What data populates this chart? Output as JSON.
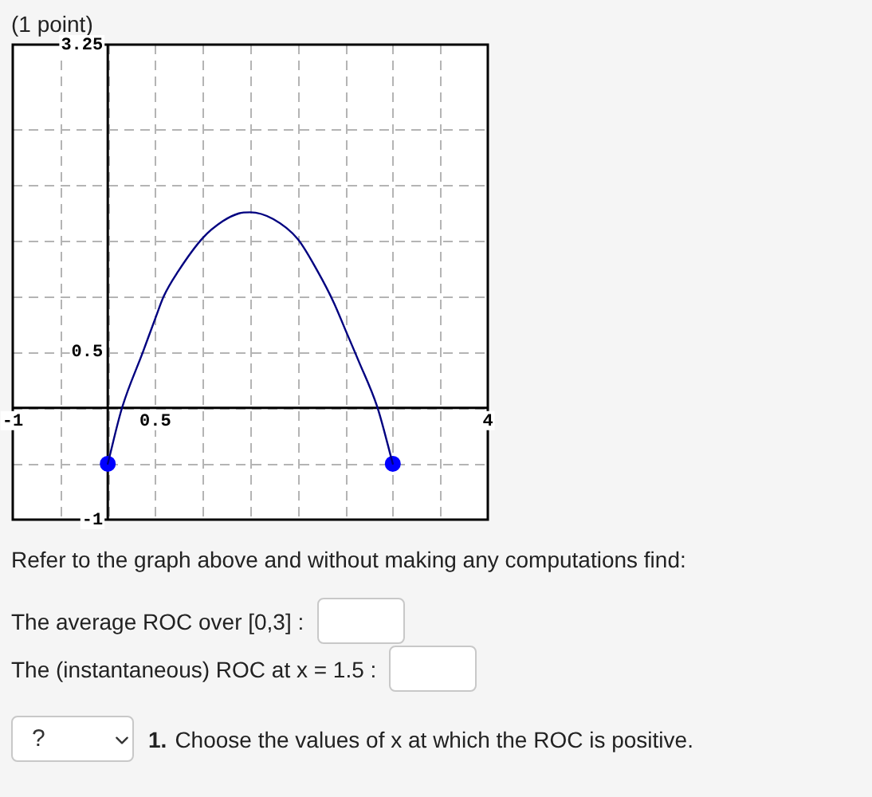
{
  "chart_data": {
    "type": "line",
    "title": "(1 point)",
    "xlim": [
      -1,
      4
    ],
    "ylim": [
      -1,
      3.25
    ],
    "xticks": [
      -1,
      {
        "value": -0.5,
        "label": null
      },
      {
        "value": 0,
        "label": null
      },
      0.5,
      {
        "value": 1,
        "label": null
      },
      {
        "value": 1.5,
        "label": null
      },
      {
        "value": 2,
        "label": null
      },
      {
        "value": 2.5,
        "label": null
      },
      {
        "value": 3,
        "label": null
      },
      {
        "value": 3.5,
        "label": null
      },
      4
    ],
    "yticks": [
      -1,
      {
        "value": -0.5,
        "label": null
      },
      {
        "value": 0,
        "label": null
      },
      0.5,
      {
        "value": 1,
        "label": null
      },
      {
        "value": 1.5,
        "label": null
      },
      {
        "value": 2,
        "label": null
      },
      {
        "value": 2.5,
        "label": null
      },
      3.25
    ],
    "grid": true,
    "series": [
      {
        "color": "#000080",
        "marker": "none",
        "x": [
          0,
          0.15,
          0.37,
          0.5,
          0.59,
          0.74,
          1.0,
          1.21,
          1.38,
          1.5,
          1.74,
          2.0,
          2.21,
          2.38,
          2.5,
          2.64,
          2.84,
          3.0
        ],
        "values": [
          -0.5,
          0,
          0.5,
          0.8,
          1.0,
          1.22,
          1.52,
          1.67,
          1.74,
          1.75,
          1.69,
          1.51,
          1.22,
          0.94,
          0.7,
          0.42,
          0,
          -0.5
        ]
      },
      {
        "type": "scatter",
        "color": "#0000ff",
        "marker": "circle",
        "x": [
          0,
          3
        ],
        "values": [
          -0.5,
          -0.5
        ]
      }
    ],
    "annotations": [
      "Refer to the graph above and without making any computations find:",
      "The average ROC over [0,3] :",
      "The (instantaneous) ROC at x = 1.5 :",
      "?",
      "1.",
      "Choose the values of x at which the ROC is positive."
    ]
  }
}
